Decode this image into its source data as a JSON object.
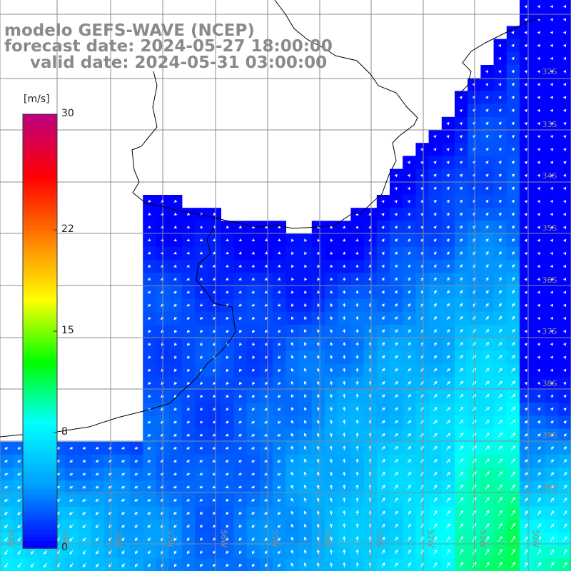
{
  "title": {
    "line1": "modelo GEFS-WAVE (NCEP)",
    "line2": "forecast date: 2024-05-27 18:00:00",
    "line3": "valid date: 2024-05-31 03:00:00"
  },
  "colorbar": {
    "unit": "[m/s]",
    "ticks": [
      "30",
      "22",
      "15",
      "8",
      "0"
    ],
    "range": [
      0,
      30
    ],
    "colors": [
      "#0000ff",
      "#00a0ff",
      "#00ffff",
      "#00ff00",
      "#ffff00",
      "#ff8000",
      "#ff0000",
      "#c00080"
    ]
  },
  "grid": {
    "lat_labels": [
      "32S",
      "33S",
      "34S",
      "35S",
      "36S",
      "37S",
      "38S",
      "39S",
      "40S"
    ],
    "lon_labels": [
      "60W",
      "59W",
      "58W",
      "57W",
      "56W",
      "55W",
      "54W",
      "53W",
      "52W",
      "51W",
      "50W"
    ]
  },
  "colors": {
    "grid": "#8c8c8c",
    "coast": "#000000",
    "arrow": "#ffffff",
    "land": "#ffffff"
  }
}
